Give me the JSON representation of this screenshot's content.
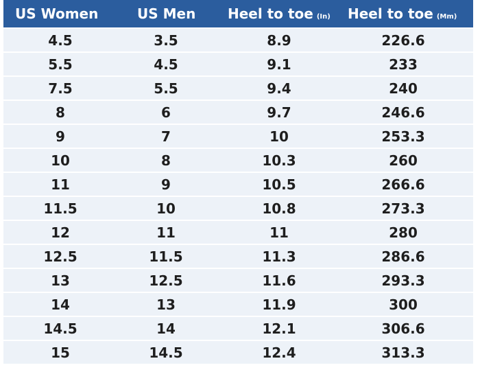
{
  "header": {
    "columns": [
      {
        "label": "US Women"
      },
      {
        "label": "US Men"
      },
      {
        "label": "Heel to toe",
        "unit": "(In)"
      },
      {
        "label": "Heel to toe",
        "unit": "(Mm)"
      }
    ]
  },
  "table": {
    "rows": [
      [
        "4.5",
        "3.5",
        "8.9",
        "226.6"
      ],
      [
        "5.5",
        "4.5",
        "9.1",
        "233"
      ],
      [
        "7.5",
        "5.5",
        "9.4",
        "240"
      ],
      [
        "8",
        "6",
        "9.7",
        "246.6"
      ],
      [
        "9",
        "7",
        "10",
        "253.3"
      ],
      [
        "10",
        "8",
        "10.3",
        "260"
      ],
      [
        "11",
        "9",
        "10.5",
        "266.6"
      ],
      [
        "11.5",
        "10",
        "10.8",
        "273.3"
      ],
      [
        "12",
        "11",
        "11",
        "280"
      ],
      [
        "12.5",
        "11.5",
        "11.3",
        "286.6"
      ],
      [
        "13",
        "12.5",
        "11.6",
        "293.3"
      ],
      [
        "14",
        "13",
        "11.9",
        "300"
      ],
      [
        "14.5",
        "14",
        "12.1",
        "306.6"
      ],
      [
        "15",
        "14.5",
        "12.4",
        "313.3"
      ]
    ]
  }
}
